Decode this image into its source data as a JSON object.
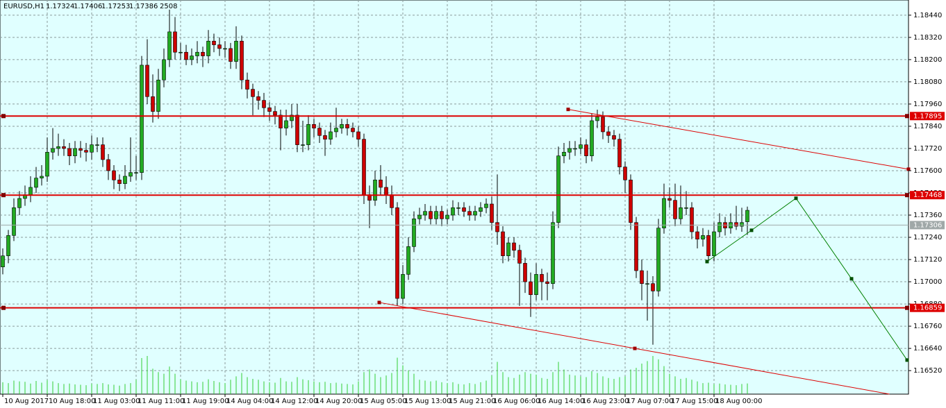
{
  "chart_data": {
    "type": "candlestick",
    "symbol": "EURUSD,H1",
    "candles": [
      [
        1.1708,
        1.1718,
        1.1704,
        1.1714
      ],
      [
        1.1714,
        1.1728,
        1.171,
        1.1725
      ],
      [
        1.1725,
        1.1745,
        1.1722,
        1.174
      ],
      [
        1.174,
        1.1749,
        1.1736,
        1.1745
      ],
      [
        1.1745,
        1.1752,
        1.1741,
        1.1747
      ],
      [
        1.1747,
        1.1757,
        1.1743,
        1.1751
      ],
      [
        1.1751,
        1.1762,
        1.1748,
        1.1756
      ],
      [
        1.1756,
        1.1763,
        1.1752,
        1.1757
      ],
      [
        1.1757,
        1.1778,
        1.1754,
        1.177
      ],
      [
        1.177,
        1.1783,
        1.1766,
        1.1772
      ],
      [
        1.1772,
        1.178,
        1.1768,
        1.1773
      ],
      [
        1.1773,
        1.1777,
        1.1768,
        1.1772
      ],
      [
        1.1772,
        1.1775,
        1.1763,
        1.1768
      ],
      [
        1.1768,
        1.1776,
        1.1764,
        1.1772
      ],
      [
        1.1772,
        1.1776,
        1.1767,
        1.1771
      ],
      [
        1.1771,
        1.1775,
        1.1765,
        1.177
      ],
      [
        1.177,
        1.1779,
        1.1766,
        1.1774
      ],
      [
        1.1774,
        1.1778,
        1.177,
        1.1774
      ],
      [
        1.1774,
        1.1778,
        1.1762,
        1.1766
      ],
      [
        1.1766,
        1.1769,
        1.1755,
        1.176
      ],
      [
        1.176,
        1.1763,
        1.175,
        1.1755
      ],
      [
        1.1755,
        1.1758,
        1.1749,
        1.1753
      ],
      [
        1.1753,
        1.1763,
        1.175,
        1.1757
      ],
      [
        1.1757,
        1.1778,
        1.1754,
        1.1759
      ],
      [
        1.1759,
        1.1768,
        1.1755,
        1.1759
      ],
      [
        1.1759,
        1.1822,
        1.1755,
        1.1817
      ],
      [
        1.1817,
        1.1831,
        1.1796,
        1.18
      ],
      [
        1.18,
        1.1812,
        1.1786,
        1.1792
      ],
      [
        1.1792,
        1.1815,
        1.1788,
        1.1809
      ],
      [
        1.1809,
        1.1826,
        1.1805,
        1.182
      ],
      [
        1.182,
        1.1847,
        1.1816,
        1.1835
      ],
      [
        1.1835,
        1.1843,
        1.182,
        1.1824
      ],
      [
        1.1824,
        1.1829,
        1.182,
        1.1824
      ],
      [
        1.1824,
        1.1828,
        1.1817,
        1.182
      ],
      [
        1.182,
        1.1826,
        1.1817,
        1.1822
      ],
      [
        1.1822,
        1.183,
        1.1818,
        1.1824
      ],
      [
        1.1824,
        1.1827,
        1.1816,
        1.1822
      ],
      [
        1.1822,
        1.1836,
        1.1818,
        1.183
      ],
      [
        1.183,
        1.1834,
        1.1824,
        1.1828
      ],
      [
        1.1828,
        1.1832,
        1.1822,
        1.1826
      ],
      [
        1.1826,
        1.183,
        1.1821,
        1.1826
      ],
      [
        1.1826,
        1.1829,
        1.1815,
        1.1819
      ],
      [
        1.1819,
        1.1838,
        1.1815,
        1.183
      ],
      [
        1.183,
        1.1833,
        1.1804,
        1.1809
      ],
      [
        1.1809,
        1.1813,
        1.1799,
        1.1804
      ],
      [
        1.1804,
        1.1807,
        1.179,
        1.18
      ],
      [
        1.18,
        1.1803,
        1.1793,
        1.1798
      ],
      [
        1.1798,
        1.1802,
        1.1789,
        1.1794
      ],
      [
        1.1794,
        1.1797,
        1.1787,
        1.1792
      ],
      [
        1.1792,
        1.1795,
        1.1785,
        1.179
      ],
      [
        1.179,
        1.1793,
        1.1771,
        1.1783
      ],
      [
        1.1783,
        1.1793,
        1.1779,
        1.1787
      ],
      [
        1.1787,
        1.1796,
        1.1783,
        1.179
      ],
      [
        1.179,
        1.1796,
        1.177,
        1.1774
      ],
      [
        1.1774,
        1.1787,
        1.177,
        1.1774
      ],
      [
        1.1774,
        1.179,
        1.1771,
        1.1785
      ],
      [
        1.1785,
        1.1788,
        1.1778,
        1.1783
      ],
      [
        1.1783,
        1.1786,
        1.1775,
        1.1779
      ],
      [
        1.1779,
        1.1782,
        1.1768,
        1.1777
      ],
      [
        1.1777,
        1.1786,
        1.1774,
        1.1781
      ],
      [
        1.1781,
        1.1794,
        1.1778,
        1.1783
      ],
      [
        1.1783,
        1.1788,
        1.178,
        1.1785
      ],
      [
        1.1785,
        1.1788,
        1.1779,
        1.1783
      ],
      [
        1.1783,
        1.1786,
        1.1778,
        1.1781
      ],
      [
        1.1781,
        1.1784,
        1.1773,
        1.1777
      ],
      [
        1.1777,
        1.178,
        1.1742,
        1.1747
      ],
      [
        1.1747,
        1.1752,
        1.1729,
        1.1744
      ],
      [
        1.1744,
        1.176,
        1.1741,
        1.1755
      ],
      [
        1.1755,
        1.1763,
        1.1747,
        1.1751
      ],
      [
        1.1751,
        1.1757,
        1.1742,
        1.1747
      ],
      [
        1.1747,
        1.1752,
        1.1736,
        1.174
      ],
      [
        1.174,
        1.1743,
        1.1687,
        1.1691
      ],
      [
        1.1691,
        1.1709,
        1.1688,
        1.1704
      ],
      [
        1.1704,
        1.1724,
        1.1701,
        1.1719
      ],
      [
        1.1719,
        1.1738,
        1.1716,
        1.1734
      ],
      [
        1.1734,
        1.174,
        1.1731,
        1.1736
      ],
      [
        1.1736,
        1.1742,
        1.1733,
        1.1738
      ],
      [
        1.1738,
        1.1741,
        1.1731,
        1.1734
      ],
      [
        1.1734,
        1.1741,
        1.1731,
        1.1738
      ],
      [
        1.1738,
        1.1741,
        1.173,
        1.1734
      ],
      [
        1.1734,
        1.1739,
        1.1731,
        1.1736
      ],
      [
        1.1736,
        1.1744,
        1.1733,
        1.174
      ],
      [
        1.174,
        1.1743,
        1.1736,
        1.174
      ],
      [
        1.174,
        1.1743,
        1.1735,
        1.1738
      ],
      [
        1.1738,
        1.1741,
        1.1733,
        1.1736
      ],
      [
        1.1736,
        1.1741,
        1.1733,
        1.1738
      ],
      [
        1.1738,
        1.1743,
        1.1735,
        1.174
      ],
      [
        1.174,
        1.1745,
        1.1737,
        1.1742
      ],
      [
        1.1742,
        1.1746,
        1.1728,
        1.1732
      ],
      [
        1.1732,
        1.1758,
        1.172,
        1.1727
      ],
      [
        1.1727,
        1.173,
        1.171,
        1.1714
      ],
      [
        1.1714,
        1.1724,
        1.1711,
        1.1721
      ],
      [
        1.1721,
        1.1724,
        1.1713,
        1.1717
      ],
      [
        1.1717,
        1.172,
        1.1687,
        1.171
      ],
      [
        1.171,
        1.1713,
        1.1694,
        1.17
      ],
      [
        1.17,
        1.1705,
        1.1681,
        1.1693
      ],
      [
        1.1693,
        1.171,
        1.169,
        1.1704
      ],
      [
        1.1704,
        1.1707,
        1.169,
        1.17
      ],
      [
        1.17,
        1.1705,
        1.169,
        1.1699
      ],
      [
        1.1699,
        1.1738,
        1.1696,
        1.1732
      ],
      [
        1.1732,
        1.1773,
        1.1729,
        1.1768
      ],
      [
        1.1768,
        1.1775,
        1.1764,
        1.177
      ],
      [
        1.177,
        1.1776,
        1.1766,
        1.1772
      ],
      [
        1.1772,
        1.1776,
        1.1768,
        1.1772
      ],
      [
        1.1772,
        1.1778,
        1.1769,
        1.1774
      ],
      [
        1.1774,
        1.1777,
        1.1764,
        1.1768
      ],
      [
        1.1768,
        1.1791,
        1.1765,
        1.1787
      ],
      [
        1.1787,
        1.1793,
        1.1783,
        1.1789
      ],
      [
        1.1789,
        1.1792,
        1.1777,
        1.1781
      ],
      [
        1.1781,
        1.1784,
        1.1775,
        1.1779
      ],
      [
        1.1779,
        1.1782,
        1.1773,
        1.1777
      ],
      [
        1.1777,
        1.178,
        1.1758,
        1.1762
      ],
      [
        1.1762,
        1.1765,
        1.1748,
        1.1755
      ],
      [
        1.1755,
        1.1758,
        1.1728,
        1.1732
      ],
      [
        1.1732,
        1.1735,
        1.1702,
        1.1706
      ],
      [
        1.1706,
        1.1712,
        1.169,
        1.1699
      ],
      [
        1.1699,
        1.1706,
        1.1679,
        1.1699
      ],
      [
        1.1699,
        1.1703,
        1.1666,
        1.1695
      ],
      [
        1.1695,
        1.1734,
        1.1692,
        1.1729
      ],
      [
        1.1729,
        1.1753,
        1.1726,
        1.1745
      ],
      [
        1.1745,
        1.1751,
        1.174,
        1.1744
      ],
      [
        1.1744,
        1.1753,
        1.173,
        1.1734
      ],
      [
        1.1734,
        1.1752,
        1.1731,
        1.174
      ],
      [
        1.174,
        1.1749,
        1.1736,
        1.174
      ],
      [
        1.174,
        1.1743,
        1.1723,
        1.1727
      ],
      [
        1.1727,
        1.173,
        1.1718,
        1.1723
      ],
      [
        1.1723,
        1.1729,
        1.1719,
        1.1725
      ],
      [
        1.1725,
        1.1728,
        1.171,
        1.1714
      ],
      [
        1.1714,
        1.1732,
        1.1711,
        1.1727
      ],
      [
        1.1727,
        1.1737,
        1.1724,
        1.1732
      ],
      [
        1.1732,
        1.1735,
        1.1725,
        1.1729
      ],
      [
        1.1729,
        1.1737,
        1.1726,
        1.1732
      ],
      [
        1.1732,
        1.1741,
        1.1728,
        1.173
      ],
      [
        1.173,
        1.174,
        1.1727,
        1.1732
      ],
      [
        1.17324,
        1.17406,
        1.17253,
        1.17386
      ]
    ],
    "volume": [
      2800,
      2600,
      3200,
      3000,
      2900,
      2500,
      3100,
      2700,
      3300,
      3000,
      2600,
      2400,
      2500,
      2300,
      2200,
      2100,
      2500,
      2400,
      2600,
      2300,
      2200,
      2000,
      2400,
      2600,
      3400,
      8500,
      9000,
      6000,
      5200,
      4800,
      6500,
      4800,
      3500,
      3200,
      3000,
      2800,
      2900,
      3500,
      3100,
      2800,
      2600,
      3400,
      4200,
      5000,
      4000,
      3600,
      3400,
      3000,
      2800,
      2700,
      3800,
      3000,
      2900,
      4000,
      3500,
      3300,
      3000,
      2800,
      2900,
      2600,
      2700,
      2500,
      2400,
      2300,
      3000,
      5200,
      5800,
      4800,
      4000,
      4400,
      5000,
      8600,
      6800,
      5600,
      4800,
      3400,
      3200,
      3000,
      3200,
      2800,
      2600,
      2800,
      2400,
      2300,
      2600,
      2400,
      2800,
      3200,
      4400,
      7600,
      5200,
      4000,
      3800,
      4600,
      5200,
      4800,
      4600,
      3800,
      3600,
      5200,
      7600,
      5800,
      4600,
      4400,
      4200,
      4000,
      5400,
      5000,
      4200,
      3800,
      3600,
      4000,
      4200,
      5800,
      6200,
      7200,
      7800,
      9000,
      8200,
      6600,
      4800,
      4200,
      3600,
      3800,
      3400,
      3000,
      2600,
      2700,
      2400,
      2500,
      2300,
      2200,
      2100,
      2400,
      2508
    ],
    "up_color": "#22aa22",
    "down_color": "#cc0000",
    "volume_color": "#32cd32",
    "xlim": [
      -0.5,
      163
    ],
    "ylim": [
      1.16393,
      1.18522
    ],
    "xticks": [
      {
        "value": 0,
        "label": "10 Aug 2017"
      },
      {
        "value": 8,
        "label": "10 Aug 18:00"
      },
      {
        "value": 16,
        "label": "11 Aug 03:00"
      },
      {
        "value": 24,
        "label": "11 Aug 11:00"
      },
      {
        "value": 32,
        "label": "11 Aug 19:00"
      },
      {
        "value": 40,
        "label": "14 Aug 04:00"
      },
      {
        "value": 48,
        "label": "14 Aug 12:00"
      },
      {
        "value": 56,
        "label": "14 Aug 20:00"
      },
      {
        "value": 64,
        "label": "15 Aug 05:00"
      },
      {
        "value": 72,
        "label": "15 Aug 13:00"
      },
      {
        "value": 80,
        "label": "15 Aug 21:00"
      },
      {
        "value": 88,
        "label": "16 Aug 06:00"
      },
      {
        "value": 96,
        "label": "16 Aug 14:00"
      },
      {
        "value": 104,
        "label": "16 Aug 23:00"
      },
      {
        "value": 112,
        "label": "17 Aug 07:00"
      },
      {
        "value": 120,
        "label": "17 Aug 15:00"
      },
      {
        "value": 128,
        "label": "18 Aug 00:00"
      }
    ],
    "yticks": [
      {
        "value": 1.1844,
        "label": "1.18440"
      },
      {
        "value": 1.1832,
        "label": "1.18320"
      },
      {
        "value": 1.182,
        "label": "1.18200"
      },
      {
        "value": 1.1808,
        "label": "1.18080"
      },
      {
        "value": 1.1796,
        "label": "1.17960"
      },
      {
        "value": 1.1784,
        "label": "1.17840"
      },
      {
        "value": 1.1772,
        "label": "1.17720"
      },
      {
        "value": 1.176,
        "label": "1.17600"
      },
      {
        "value": 1.1748,
        "label": "1.17480"
      },
      {
        "value": 1.1736,
        "label": "1.17360"
      },
      {
        "value": 1.1724,
        "label": "1.17240"
      },
      {
        "value": 1.1712,
        "label": "1.17120"
      },
      {
        "value": 1.17,
        "label": "1.17000"
      },
      {
        "value": 1.1688,
        "label": "1.16880"
      },
      {
        "value": 1.1676,
        "label": "1.16760"
      },
      {
        "value": 1.1664,
        "label": "1.16640"
      },
      {
        "value": 1.1652,
        "label": "1.16520"
      }
    ],
    "grid": true,
    "hlines": [
      1.17895,
      1.17468,
      1.16859
    ],
    "hline_color": "#dd0000",
    "bid_line": 1.17306,
    "bid_color": "#a0a8a8",
    "trendlines": [
      {
        "color": "#dd0000",
        "ray": true,
        "x": [
          101.75,
          163
        ],
        "y": [
          1.17931,
          1.17608
        ]
      },
      {
        "color": "#dd0000",
        "ray": true,
        "x": [
          67.75,
          113.75
        ],
        "y": [
          1.16888,
          1.1664
        ]
      },
      {
        "color": "#008000",
        "ray": false,
        "x": [
          126.75,
          134.75,
          142.75,
          152.75,
          162.75
        ],
        "y": [
          1.17109,
          1.17278,
          1.17451,
          1.17016,
          1.16577
        ]
      }
    ]
  }
}
